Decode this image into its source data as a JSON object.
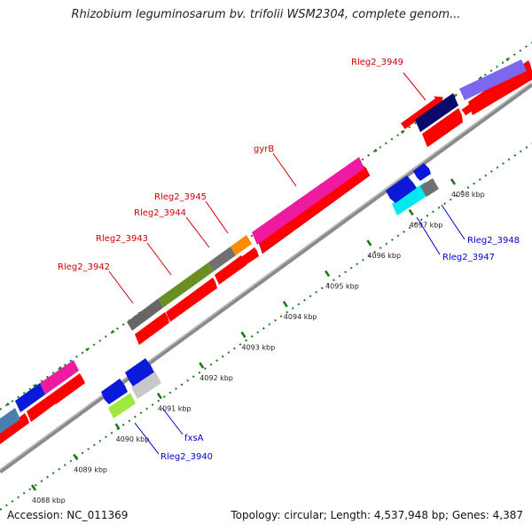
{
  "title": "Rhizobium leguminosarum bv. trifolii WSM2304, complete genom...",
  "footer": {
    "accession": "Accession: NC_011369",
    "summary": "Topology: circular; Length: 4,537,948 bp; Genes: 4,387"
  },
  "colors": {
    "backbone": "#8a8a8a",
    "cds": "#ff0000",
    "ticks": "#1a7a1a",
    "label_forward": "#cc0000",
    "label_reverse": "#0000cc"
  },
  "ticks": [
    "4088 kbp",
    "4089 kbp",
    "4090 kbp",
    "4091 kbp",
    "4092 kbp",
    "4093 kbp",
    "4094 kbp",
    "4095 kbp",
    "4096 kbp",
    "4097 kbp",
    "4098 kbp"
  ],
  "gene_labels": {
    "rleg2_3949": "Rleg2_3949",
    "gyrb": "gyrB",
    "rleg2_3945": "Rleg2_3945",
    "rleg2_3944": "Rleg2_3944",
    "rleg2_3943": "Rleg2_3943",
    "rleg2_3942": "Rleg2_3942",
    "rleg2_3948": "Rleg2_3948",
    "rleg2_3947": "Rleg2_3947",
    "fxsa": "fxsA",
    "rleg2_3940": "Rleg2_3940"
  }
}
